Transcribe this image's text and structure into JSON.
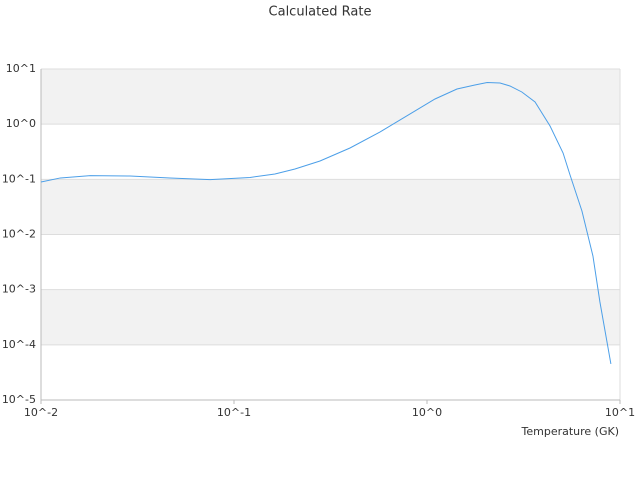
{
  "chart_data": {
    "type": "line",
    "title": "Calculated Rate",
    "x_label": "Temperature (GK)",
    "x": [
      0.01,
      0.0126,
      0.018,
      0.0289,
      0.0466,
      0.0752,
      0.121,
      0.163,
      0.207,
      0.279,
      0.399,
      0.57,
      0.817,
      1.1,
      1.43,
      1.77,
      2.05,
      2.39,
      2.69,
      3.1,
      3.63,
      4.34,
      5.07,
      5.51,
      6.35,
      7.24,
      7.87,
      8.97
    ],
    "series": [
      {
        "color": "#4c9fe8",
        "values": [
          0.0895,
          0.106,
          0.117,
          0.115,
          0.106,
          0.099,
          0.108,
          0.125,
          0.154,
          0.215,
          0.37,
          0.72,
          1.53,
          2.86,
          4.34,
          5.13,
          5.69,
          5.57,
          4.92,
          3.83,
          2.52,
          0.927,
          0.3,
          0.12,
          0.0267,
          0.00408,
          0.000598,
          4.5e-05
        ]
      }
    ],
    "xscale": "log",
    "yscale": "log",
    "xlim": [
      0.01,
      10
    ],
    "ylim": [
      1e-05,
      10
    ],
    "xticks": [
      {
        "value": 0.01,
        "label": "10^-2"
      },
      {
        "value": 0.1,
        "label": "10^-1"
      },
      {
        "value": 1,
        "label": "10^0"
      },
      {
        "value": 10,
        "label": "10^1"
      }
    ],
    "yticks": [
      {
        "value": 1e-05,
        "label": "10^-5"
      },
      {
        "value": 0.0001,
        "label": "10^-4"
      },
      {
        "value": 0.001,
        "label": "10^-3"
      },
      {
        "value": 0.01,
        "label": "10^-2"
      },
      {
        "value": 0.1,
        "label": "10^-1"
      },
      {
        "value": 1,
        "label": "10^0"
      },
      {
        "value": 10,
        "label": "10^1"
      }
    ],
    "grid": true
  }
}
